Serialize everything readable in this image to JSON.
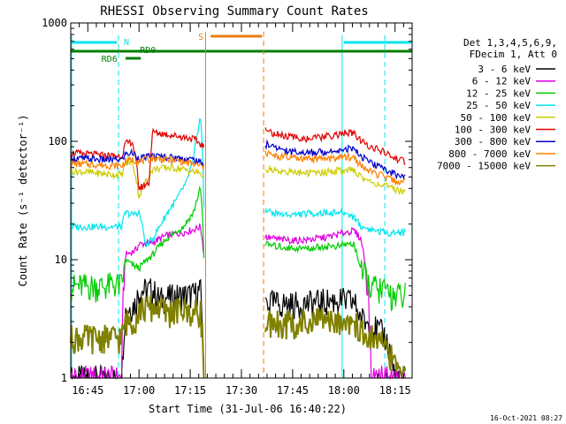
{
  "chart_data": {
    "type": "line",
    "title": "RHESSI Observing Summary Count Rates",
    "xlabel": "Start Time (31-Jul-06 16:40:22)",
    "ylabel": "Count Rate (s⁻¹ detector⁻¹)",
    "yscale": "log",
    "ylim": [
      1,
      1000
    ],
    "xlim_minutes_after_1640": [
      0,
      100
    ],
    "y_tick_labels": [
      "1",
      "10",
      "100",
      "1000"
    ],
    "x_ticks": [
      {
        "label": "16:45",
        "t": 5
      },
      {
        "label": "17:00",
        "t": 20
      },
      {
        "label": "17:15",
        "t": 35
      },
      {
        "label": "17:30",
        "t": 50
      },
      {
        "label": "17:45",
        "t": 65
      },
      {
        "label": "18:00",
        "t": 80
      },
      {
        "label": "18:15",
        "t": 95
      }
    ],
    "legend_header": [
      "Det 1,3,4,5,6,9,",
      "FDecim 1, Att 0"
    ],
    "footer_date": "16-Oct-2021 08:27",
    "data_gap_minutes": [
      39.5,
      56.5
    ],
    "flags": [
      {
        "label": "N",
        "color": "#00e5ee",
        "t_start": 0,
        "t_end": 14,
        "level": "upper",
        "boundaries": [
          14,
          79.5,
          92
        ]
      },
      {
        "label": "RD0",
        "color": "#007f00",
        "t_start": 0,
        "t_end": 100,
        "level": "lower"
      },
      {
        "label": "RD6",
        "color": "#007f00",
        "t_start": 15,
        "t_end": 20,
        "level": "below"
      },
      {
        "label": "S",
        "color": "#e87e10",
        "t_start": 41,
        "t_end": 56,
        "level": "upper",
        "boundaries": [
          39.5,
          56.5
        ]
      }
    ],
    "series": [
      {
        "name": "3 - 6 keV",
        "color": "#000000",
        "t": [
          0,
          10,
          15,
          16,
          19,
          20,
          24,
          26,
          28,
          33,
          36,
          38,
          39,
          57,
          60,
          65,
          70,
          75,
          79,
          80,
          83,
          85,
          88,
          92,
          95,
          98
        ],
        "values": [
          1.0,
          1.0,
          1.0,
          3.7,
          4.3,
          5.5,
          5.6,
          4.6,
          4.8,
          5.0,
          5.1,
          5.5,
          1.0,
          4.5,
          4.3,
          4.2,
          4.3,
          4.5,
          4.6,
          4.5,
          4.4,
          3.2,
          2.8,
          2.3,
          1.0,
          1.0
        ]
      },
      {
        "name": "6 - 12 keV",
        "color": "#e000e0",
        "t": [
          0,
          10,
          15,
          16,
          19,
          20,
          24,
          26,
          28,
          33,
          36,
          38,
          39,
          57,
          60,
          65,
          70,
          75,
          79,
          80,
          83,
          85,
          88,
          92,
          95,
          98
        ],
        "values": [
          1.0,
          1.0,
          1.0,
          11.0,
          12.0,
          13.5,
          14.0,
          15.0,
          16.0,
          17.0,
          18.0,
          19.0,
          11.0,
          15.5,
          15.0,
          14.5,
          14.8,
          15.5,
          16.5,
          17.0,
          17.5,
          15.0,
          1.0,
          1.0,
          1.0,
          1.0
        ]
      },
      {
        "name": "12 - 25 keV",
        "color": "#00cc00",
        "t": [
          0,
          10,
          12,
          15,
          16,
          18,
          20,
          24,
          26,
          28,
          33,
          36,
          38,
          39,
          57,
          60,
          65,
          70,
          75,
          79,
          80,
          83,
          85,
          88,
          92,
          95,
          98
        ],
        "values": [
          6.0,
          6.0,
          6.2,
          6.1,
          10.0,
          9.0,
          8.5,
          11.0,
          13.0,
          15.0,
          19.0,
          25.0,
          40.0,
          10.0,
          13.5,
          13.0,
          12.5,
          12.5,
          13.0,
          13.0,
          13.5,
          13.5,
          8.0,
          6.0,
          5.5,
          5.0,
          5.0
        ]
      },
      {
        "name": "25 - 50 keV",
        "color": "#00e5ee",
        "t": [
          0,
          10,
          15,
          16,
          18,
          20,
          22,
          24,
          26,
          28,
          31,
          34,
          36,
          38,
          39,
          57,
          60,
          65,
          70,
          75,
          79,
          80,
          83,
          85,
          88,
          92,
          95,
          98
        ],
        "values": [
          19.0,
          19.0,
          19.0,
          25.0,
          24.0,
          25.0,
          13.0,
          15.0,
          19.0,
          24.0,
          32.0,
          45.0,
          70.0,
          160.0,
          28.0,
          26.0,
          24.5,
          24.0,
          24.5,
          25.0,
          25.0,
          25.0,
          23.0,
          19.0,
          18.0,
          17.0,
          17.0,
          17.0
        ]
      },
      {
        "name": "50 - 100 keV",
        "color": "#cccc00",
        "t": [
          0,
          5,
          10,
          15,
          16,
          18,
          20,
          24,
          28,
          32,
          36,
          38,
          39,
          57,
          60,
          65,
          70,
          75,
          79,
          80,
          83,
          85,
          88,
          92,
          95,
          98
        ],
        "values": [
          56.0,
          55.0,
          53.0,
          52.0,
          65.0,
          67.0,
          34.0,
          58.0,
          60.0,
          59.0,
          55.0,
          54.0,
          50.0,
          58.0,
          57.0,
          55.0,
          54.0,
          55.0,
          57.0,
          56.0,
          57.0,
          50.0,
          45.0,
          42.0,
          39.0,
          38.0
        ]
      },
      {
        "name": "100 - 300 keV",
        "color": "#e00000",
        "t": [
          0,
          5,
          10,
          15,
          16,
          18,
          20,
          23,
          24,
          28,
          32,
          36,
          38,
          39,
          57,
          60,
          65,
          70,
          75,
          79,
          80,
          83,
          85,
          88,
          92,
          95,
          98
        ],
        "values": [
          80.0,
          78.0,
          76.0,
          75.0,
          95.0,
          100.0,
          40.0,
          45.0,
          120.0,
          115.0,
          110.0,
          105.0,
          95.0,
          90.0,
          125.0,
          115.0,
          108.0,
          105.0,
          110.0,
          115.0,
          118.0,
          116.0,
          100.0,
          90.0,
          80.0,
          72.0,
          67.0
        ]
      },
      {
        "name": "300 - 800 keV",
        "color": "#0000cc",
        "t": [
          0,
          5,
          10,
          15,
          16,
          18,
          20,
          24,
          28,
          32,
          36,
          38,
          39,
          57,
          60,
          65,
          70,
          75,
          79,
          80,
          83,
          85,
          88,
          92,
          95,
          98
        ],
        "values": [
          72.0,
          71.0,
          70.0,
          70.0,
          78.0,
          80.0,
          72.0,
          75.0,
          74.0,
          72.0,
          70.0,
          66.0,
          65.0,
          95.0,
          88.0,
          82.0,
          80.0,
          82.0,
          85.0,
          87.0,
          86.0,
          75.0,
          65.0,
          58.0,
          53.0,
          50.0
        ]
      },
      {
        "name": "800 - 7000 keV",
        "color": "#ff8000",
        "t": [
          0,
          5,
          10,
          15,
          16,
          18,
          20,
          24,
          28,
          32,
          36,
          38,
          39,
          57,
          60,
          65,
          70,
          75,
          79,
          80,
          83,
          85,
          88,
          92,
          95,
          98
        ],
        "values": [
          65.0,
          64.0,
          63.0,
          62.0,
          68.0,
          70.0,
          68.0,
          72.0,
          70.0,
          68.0,
          64.0,
          62.0,
          60.0,
          80.0,
          75.0,
          72.0,
          70.0,
          71.0,
          73.0,
          74.0,
          73.0,
          62.0,
          55.0,
          50.0,
          46.0,
          45.0
        ]
      },
      {
        "name": "7000 - 15000 keV",
        "color": "#808000",
        "t": [
          0,
          10,
          15,
          16,
          19,
          20,
          24,
          26,
          28,
          33,
          36,
          38,
          39,
          57,
          60,
          65,
          70,
          75,
          79,
          80,
          83,
          85,
          88,
          92,
          95,
          98
        ],
        "values": [
          2.2,
          2.2,
          2.2,
          3.0,
          3.2,
          3.8,
          4.0,
          4.0,
          3.6,
          3.8,
          3.5,
          3.8,
          1.0,
          3.0,
          3.0,
          2.9,
          3.0,
          3.1,
          3.2,
          3.1,
          3.0,
          2.5,
          2.2,
          2.0,
          1.2,
          1.0
        ]
      }
    ]
  }
}
